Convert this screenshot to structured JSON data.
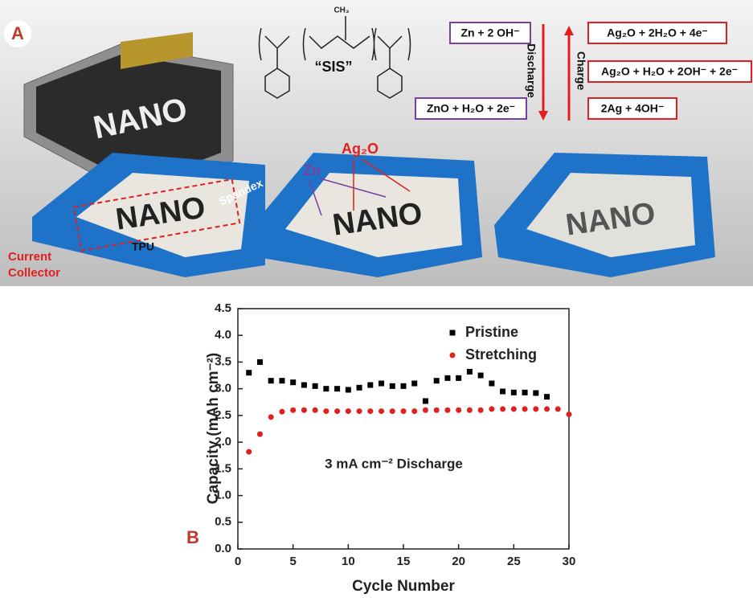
{
  "panel_a": {
    "label": "A",
    "polymer_name": "“SIS”",
    "equations": {
      "zn_left_top": "Zn + 2 OH⁻",
      "zn_left_bottom": "ZnO + H₂O + 2e⁻",
      "ag_top": "Ag₂O + 2H₂O + 4e⁻",
      "ag_middle": "Ag₂O + H₂O + 2OH⁻ + 2e⁻",
      "ag_bottom": "2Ag + 4OH⁻"
    },
    "discharge": "Discharge",
    "charge": "Charge",
    "ag2o": "Ag₂O",
    "zn": "Zn",
    "spandex": "Spandex",
    "tpu": "TPU",
    "current_collector": [
      "Current",
      "Collector"
    ],
    "nano": "NANO"
  },
  "panel_b_label": "B",
  "chart_data": {
    "type": "scatter",
    "xlabel": "Cycle Number",
    "ylabel": "Capacity (mAh cm⁻²)",
    "annotation": "3 mA cm⁻² Discharge",
    "xlim": [
      0,
      30
    ],
    "ylim": [
      0,
      4.5
    ],
    "xticks": [
      0,
      5,
      10,
      15,
      20,
      25,
      30
    ],
    "yticks": [
      {
        "value": 0,
        "label": "0.0"
      },
      0.5,
      {
        "value": 1,
        "label": "1.0"
      },
      1.5,
      {
        "value": 2,
        "label": "2.0"
      },
      2.5,
      {
        "value": 3,
        "label": "3.0"
      },
      3.5,
      {
        "value": 4,
        "label": "4.0"
      },
      4.5
    ],
    "legend": "upper right",
    "series": [
      {
        "name": "Pristine",
        "color": "#000000",
        "marker": "square",
        "x": [
          1,
          2,
          3,
          4,
          5,
          6,
          7,
          8,
          9,
          10,
          11,
          12,
          13,
          14,
          15,
          16,
          17,
          18,
          19,
          20,
          21,
          22,
          23,
          24,
          25,
          26,
          27,
          28
        ],
        "values": [
          3.3,
          3.5,
          3.15,
          3.15,
          3.12,
          3.07,
          3.05,
          3.0,
          3.0,
          2.98,
          3.02,
          3.07,
          3.1,
          3.05,
          3.05,
          3.1,
          2.77,
          3.15,
          3.2,
          3.2,
          3.32,
          3.25,
          3.1,
          2.95,
          2.93,
          2.93,
          2.92,
          2.85
        ]
      },
      {
        "name": "Stretching",
        "color": "#e02020",
        "marker": "circle",
        "x": [
          1,
          2,
          3,
          4,
          5,
          6,
          7,
          8,
          9,
          10,
          11,
          12,
          13,
          14,
          15,
          16,
          17,
          18,
          19,
          20,
          21,
          22,
          23,
          24,
          25,
          26,
          27,
          28,
          29,
          30
        ],
        "values": [
          1.82,
          2.15,
          2.47,
          2.57,
          2.6,
          2.6,
          2.6,
          2.58,
          2.58,
          2.58,
          2.58,
          2.58,
          2.58,
          2.58,
          2.58,
          2.58,
          2.6,
          2.6,
          2.6,
          2.6,
          2.6,
          2.6,
          2.62,
          2.62,
          2.62,
          2.62,
          2.62,
          2.62,
          2.62,
          2.52
        ]
      }
    ]
  }
}
